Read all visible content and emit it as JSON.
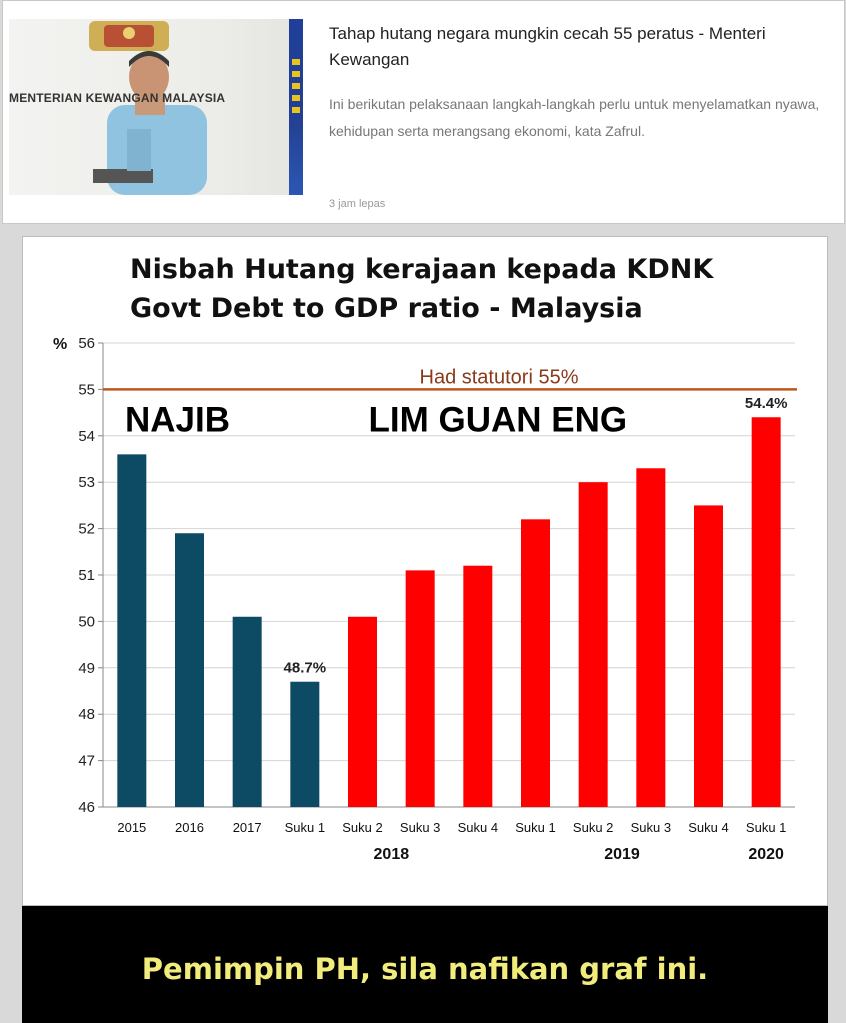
{
  "news": {
    "image_banner": "MENTERIAN KEWANGAN MALAYSIA",
    "title": "Tahap hutang negara mungkin cecah 55 peratus - Menteri Kewangan",
    "summary": "Ini berikutan pelaksanaan langkah-langkah perlu untuk menyelamatkan nyawa, kehidupan serta merangsang ekonomi, kata Zafrul.",
    "time": "3 jam lepas"
  },
  "chart_data": {
    "type": "bar",
    "title_line1": "Nisbah Hutang kerajaan kepada KDNK",
    "title_line2": "Govt Debt to GDP ratio - Malaysia",
    "ylabel": "%",
    "ylim": [
      46,
      56
    ],
    "yticks": [
      46,
      47,
      48,
      49,
      50,
      51,
      52,
      53,
      54,
      55,
      56
    ],
    "categories": [
      "2015",
      "2016",
      "2017",
      "Suku 1",
      "Suku 2",
      "Suku 3",
      "Suku 4",
      "Suku 1",
      "Suku 2",
      "Suku 3",
      "Suku 4",
      "Suku 1"
    ],
    "values": [
      53.6,
      51.9,
      50.1,
      48.7,
      50.1,
      51.1,
      51.2,
      52.2,
      53.0,
      53.3,
      52.5,
      54.4
    ],
    "year_groups": [
      {
        "label": "2018",
        "from": 3,
        "to": 6
      },
      {
        "label": "2019",
        "from": 7,
        "to": 10
      },
      {
        "label": "2020",
        "from": 11,
        "to": 11
      }
    ],
    "series": [
      {
        "name": "NAJIB",
        "indices": [
          0,
          1,
          2,
          3
        ],
        "color": "#0d4a63"
      },
      {
        "name": "LIM GUAN ENG",
        "indices": [
          4,
          5,
          6,
          7,
          8,
          9,
          10,
          11
        ],
        "color": "#ff0000"
      }
    ],
    "data_labels": [
      {
        "index": 3,
        "text": "48.7%"
      },
      {
        "index": 11,
        "text": "54.4%"
      }
    ],
    "reference_line": {
      "value": 55,
      "label": "Had statutori 55%",
      "color": "#c0561f"
    },
    "grid": true
  },
  "caption": "Pemimpin PH, sila nafikan graf ini."
}
